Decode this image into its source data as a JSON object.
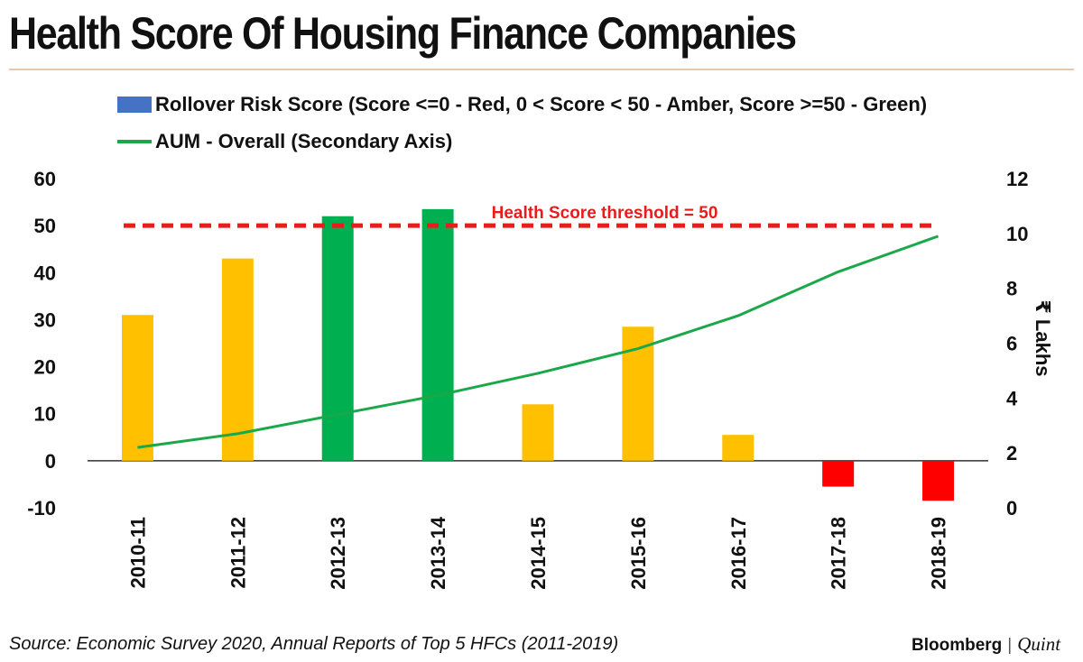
{
  "header": {
    "title": "Health Score Of Housing Finance Companies"
  },
  "legend": {
    "bar_label": "Rollover Risk Score (Score <=0 - Red, 0 < Score < 50 - Amber, Score >=50 - Green)",
    "line_label": "AUM - Overall (Secondary Axis)"
  },
  "footer": {
    "source": "Source: Economic Survey 2020, Annual Reports of Top 5 HFCs (2011-2019)",
    "brand_main": "Bloomberg",
    "brand_sep": "|",
    "brand_sub": "Quint"
  },
  "chart_data": {
    "type": "bar",
    "title": "Health Score Of Housing Finance Companies",
    "categories": [
      "2010-11",
      "2011-12",
      "2012-13",
      "2013-14",
      "2014-15",
      "2015-16",
      "2016-17",
      "2017-18",
      "2018-19"
    ],
    "series": [
      {
        "name": "Rollover Risk Score (Score <=0 - Red, 0 < Score < 50 - Amber, Score >=50 - Green)",
        "type": "bar",
        "axis": "primary",
        "values": [
          31,
          43,
          52,
          53.5,
          12,
          28.5,
          5.5,
          -5.5,
          -8.5
        ]
      },
      {
        "name": "AUM - Overall (Secondary Axis)",
        "type": "line",
        "axis": "secondary",
        "values": [
          2.2,
          2.7,
          3.4,
          4.1,
          4.9,
          5.8,
          7.0,
          8.6,
          9.9
        ]
      }
    ],
    "primary_axis": {
      "min": -10,
      "max": 60,
      "ticks": [
        -10,
        0,
        10,
        20,
        30,
        40,
        50,
        60
      ]
    },
    "secondary_axis": {
      "min": 0,
      "max": 12,
      "ticks": [
        0,
        2,
        4,
        6,
        8,
        10,
        12
      ],
      "label": "₹ Lakhs"
    },
    "threshold": {
      "value": 50,
      "label": "Health Score threshold = 50"
    },
    "colors": {
      "red": "#ff0000",
      "amber": "#ffc000",
      "green": "#00b050",
      "line": "#1aa84a",
      "threshold": "#e81c1c"
    }
  }
}
